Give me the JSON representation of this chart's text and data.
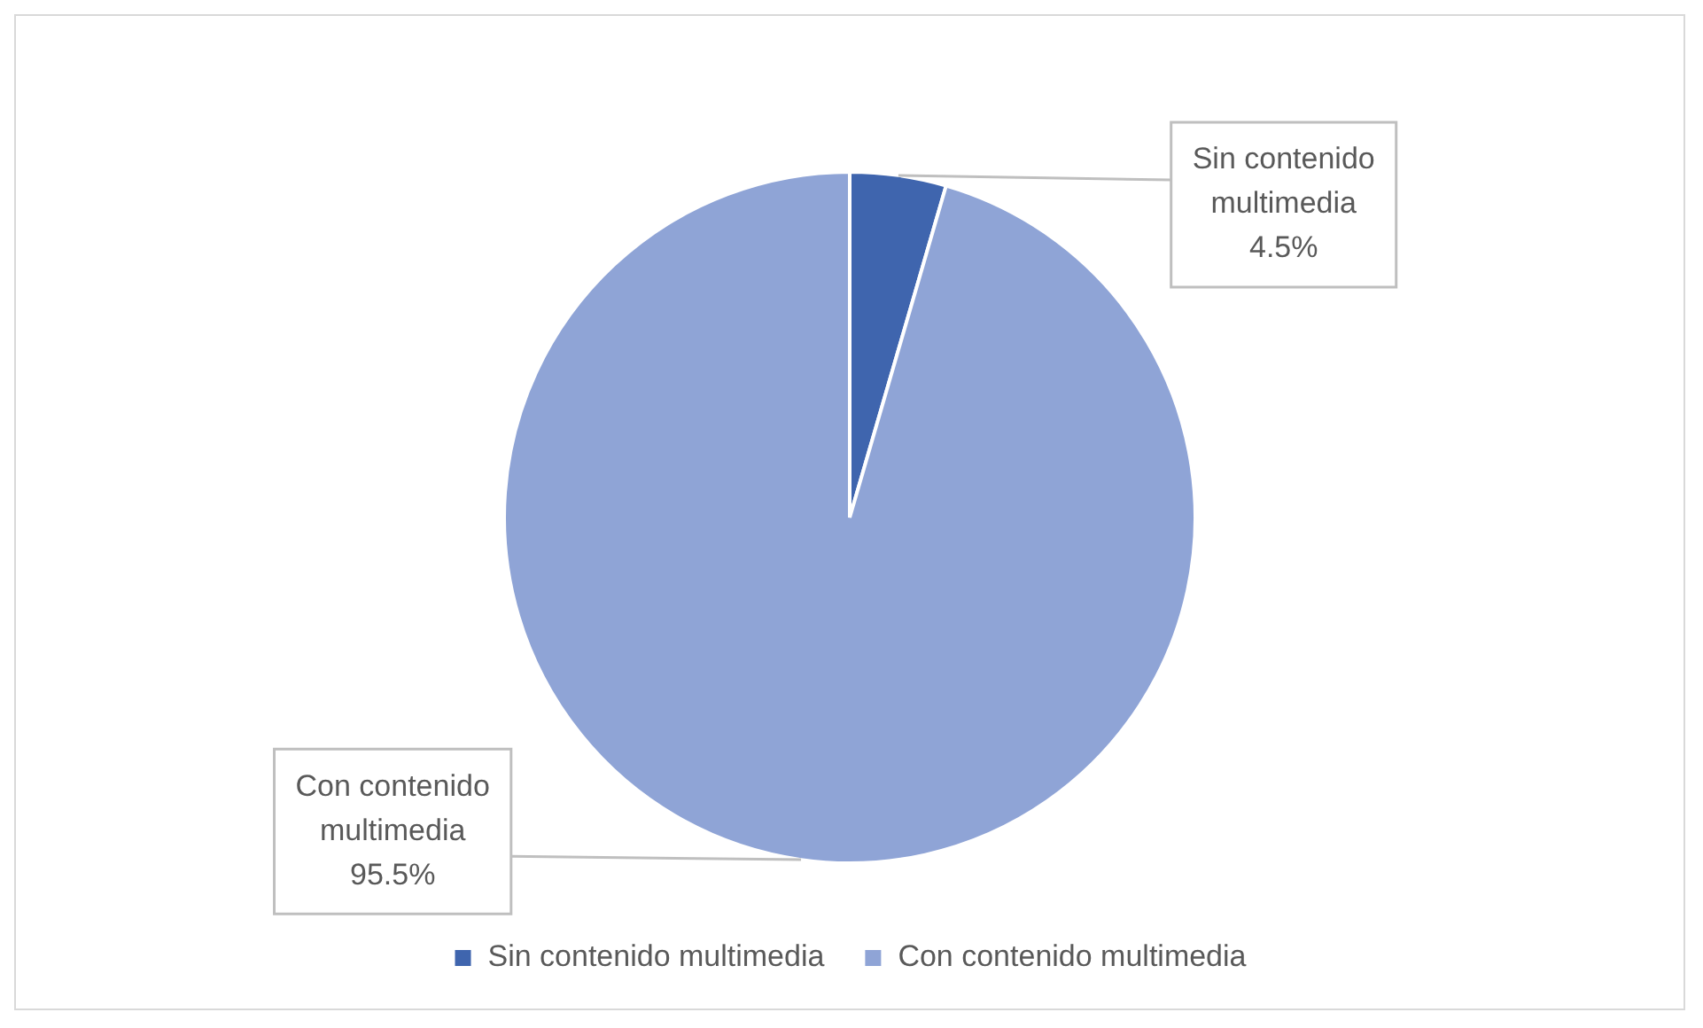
{
  "chart_data": {
    "type": "pie",
    "categories": [
      "Sin contenido multimedia",
      "Con contenido multimedia"
    ],
    "values": [
      4.5,
      95.5
    ],
    "colors": [
      "#3f65ae",
      "#8fa4d6"
    ],
    "value_labels": [
      "4.5%",
      "95.5%"
    ],
    "legend": "bottom"
  }
}
